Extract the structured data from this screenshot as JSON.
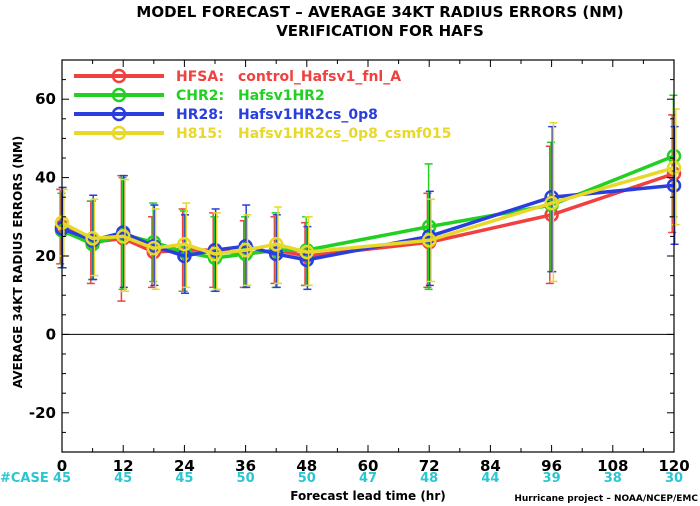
{
  "chart_data": {
    "type": "line",
    "title": "MODEL FORECAST – AVERAGE 34KT RADIUS ERRORS (NM)",
    "subtitle": "VERIFICATION FOR HAFS",
    "xlabel": "Forecast lead time (hr)",
    "ylabel": "AVERAGE 34KT RADIUS ERRORS (NM)",
    "xlim": [
      0,
      120
    ],
    "ylim": [
      -30,
      70
    ],
    "xticks": [
      0,
      12,
      24,
      36,
      48,
      60,
      72,
      84,
      96,
      108,
      120
    ],
    "yticks": [
      -20,
      0,
      20,
      40,
      60
    ],
    "grid": false,
    "legend_position": "top-left",
    "series": [
      {
        "name": "HFSA:",
        "label": "control_Hafsv1_fnl_A",
        "color": "#f04040",
        "x": [
          0,
          6,
          12,
          18,
          24,
          30,
          36,
          42,
          48,
          72,
          96,
          120
        ],
        "y": [
          27.5,
          23.5,
          24.5,
          21.0,
          21.5,
          21.5,
          20.5,
          21.5,
          20.0,
          23.5,
          30.5,
          41.0
        ],
        "err_low": [
          18.0,
          13.0,
          8.5,
          12.0,
          11.0,
          12.0,
          12.0,
          13.0,
          12.5,
          12.0,
          13.0,
          26.0
        ],
        "err_high": [
          37.0,
          34.0,
          40.5,
          30.0,
          32.0,
          31.0,
          29.0,
          30.0,
          28.5,
          36.0,
          48.0,
          56.0
        ]
      },
      {
        "name": "CHR2:",
        "label": "Hafsv1HR2",
        "color": "#22d022",
        "x": [
          0,
          6,
          12,
          18,
          24,
          30,
          36,
          42,
          48,
          72,
          96,
          120
        ],
        "y": [
          26.5,
          23.0,
          25.5,
          23.5,
          21.0,
          19.5,
          20.5,
          21.5,
          21.5,
          27.5,
          33.0,
          45.5
        ],
        "err_low": [
          17.0,
          14.0,
          11.5,
          13.5,
          11.0,
          11.0,
          12.0,
          12.0,
          12.5,
          11.5,
          16.0,
          30.0
        ],
        "err_high": [
          36.0,
          34.0,
          40.0,
          33.5,
          31.5,
          30.0,
          30.0,
          31.0,
          30.0,
          43.5,
          49.0,
          61.0
        ]
      },
      {
        "name": "HR28:",
        "label": "Hafsv1HR2cs_0p8",
        "color": "#2a3ee0",
        "x": [
          0,
          6,
          12,
          18,
          24,
          30,
          36,
          42,
          48,
          72,
          96,
          120
        ],
        "y": [
          27.0,
          24.0,
          26.0,
          22.5,
          20.0,
          21.5,
          22.5,
          20.5,
          19.0,
          25.0,
          35.0,
          38.0
        ],
        "err_low": [
          17.0,
          14.0,
          12.0,
          12.5,
          10.5,
          11.0,
          12.0,
          12.0,
          11.5,
          12.5,
          16.0,
          23.0
        ],
        "err_high": [
          37.5,
          35.5,
          40.5,
          33.0,
          30.5,
          32.0,
          33.0,
          30.5,
          27.5,
          36.5,
          53.0,
          53.0
        ]
      },
      {
        "name": "H815:",
        "label": "Hafsv1HR2cs_0p8_csmf015",
        "color": "#e8d82a",
        "x": [
          0,
          6,
          12,
          18,
          24,
          30,
          36,
          42,
          48,
          72,
          96,
          120
        ],
        "y": [
          28.5,
          24.5,
          25.0,
          22.0,
          23.0,
          20.5,
          21.5,
          23.0,
          21.0,
          24.0,
          33.5,
          42.5
        ],
        "err_low": [
          20.0,
          15.0,
          11.0,
          11.5,
          12.0,
          11.5,
          12.5,
          13.0,
          12.5,
          13.5,
          13.5,
          28.0
        ],
        "err_high": [
          37.0,
          34.5,
          39.5,
          32.0,
          33.5,
          31.0,
          30.5,
          32.5,
          30.0,
          34.5,
          54.0,
          57.5
        ]
      }
    ],
    "cases": {
      "label": "#CASE",
      "x": [
        0,
        12,
        24,
        36,
        48,
        60,
        72,
        84,
        96,
        108,
        120
      ],
      "values": [
        "45",
        "45",
        "45",
        "50",
        "50",
        "47",
        "48",
        "44",
        "39",
        "38",
        "30"
      ]
    },
    "credit": "Hurricane project – NOAA/NCEP/EMC"
  }
}
